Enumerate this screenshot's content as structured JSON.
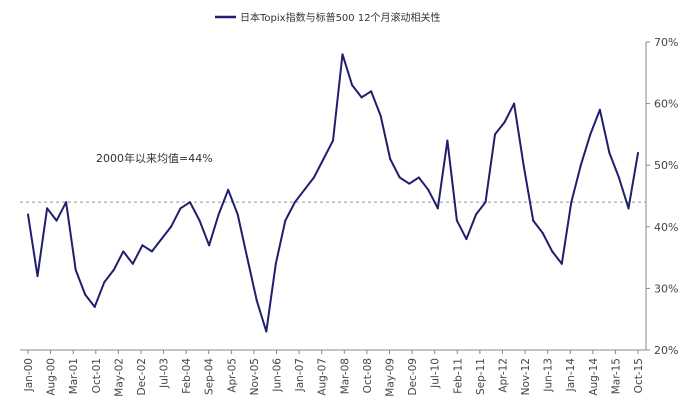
{
  "chart_data": {
    "type": "line",
    "title": "",
    "xlabel": "",
    "ylabel": "",
    "series": [
      {
        "name": "日本Topix指数与标普500 12个月滚动相关性",
        "color": "#1f1f6e",
        "x": [
          "Jan-00",
          "Apr-00",
          "Jul-00",
          "Oct-00",
          "Jan-01",
          "Apr-01",
          "Jul-01",
          "Oct-01",
          "Jan-02",
          "Apr-02",
          "Jul-02",
          "Oct-02",
          "Jan-03",
          "Apr-03",
          "Jul-03",
          "Oct-03",
          "Jan-04",
          "Apr-04",
          "Jul-04",
          "Oct-04",
          "Jan-05",
          "Apr-05",
          "Jul-05",
          "Oct-05",
          "Jan-06",
          "Apr-06",
          "Jul-06",
          "Oct-06",
          "Jan-07",
          "Apr-07",
          "Jul-07",
          "Oct-07",
          "Jan-08",
          "Apr-08",
          "Jul-08",
          "Oct-08",
          "Jan-09",
          "Apr-09",
          "Jul-09",
          "Oct-09",
          "Jan-10",
          "Apr-10",
          "Jul-10",
          "Oct-10",
          "Jan-11",
          "Apr-11",
          "Jul-11",
          "Oct-11",
          "Jan-12",
          "Apr-12",
          "Jul-12",
          "Oct-12",
          "Jan-13",
          "Apr-13",
          "Jul-13",
          "Oct-13",
          "Jan-14",
          "Apr-14",
          "Jul-14",
          "Oct-14",
          "Jan-15",
          "Apr-15",
          "Jul-15",
          "Oct-15",
          "Jan-16"
        ],
        "values": [
          42,
          32,
          43,
          41,
          44,
          33,
          29,
          27,
          31,
          33,
          36,
          34,
          37,
          36,
          38,
          40,
          43,
          44,
          41,
          37,
          42,
          46,
          42,
          35,
          28,
          23,
          34,
          41,
          44,
          46,
          48,
          51,
          54,
          68,
          63,
          61,
          62,
          58,
          51,
          48,
          47,
          48,
          46,
          43,
          54,
          41,
          38,
          42,
          44,
          55,
          57,
          60,
          50,
          41,
          39,
          36,
          34,
          44,
          50,
          55,
          59,
          52,
          48,
          43,
          52
        ]
      }
    ],
    "ylim": [
      20,
      70
    ],
    "yticks": [
      "20%",
      "30%",
      "40%",
      "50%",
      "60%",
      "70%"
    ],
    "xticks": [
      "Jan-00",
      "Aug-00",
      "Mar-01",
      "Oct-01",
      "May-02",
      "Dec-02",
      "Jul-03",
      "Feb-04",
      "Sep-04",
      "Apr-05",
      "Nov-05",
      "Jun-06",
      "Jan-07",
      "Aug-07",
      "Mar-08",
      "Oct-08",
      "May-09",
      "Dec-09",
      "Jul-10",
      "Feb-11",
      "Sep-11",
      "Apr-12",
      "Nov-12",
      "Jun-13",
      "Jan-14",
      "Aug-14",
      "Mar-15",
      "Oct-15"
    ],
    "reference_line": {
      "value": 44,
      "label": "2000年以来均值=44%",
      "style": "dashed"
    },
    "legend": {
      "placement": "top-center"
    },
    "grid": false
  }
}
